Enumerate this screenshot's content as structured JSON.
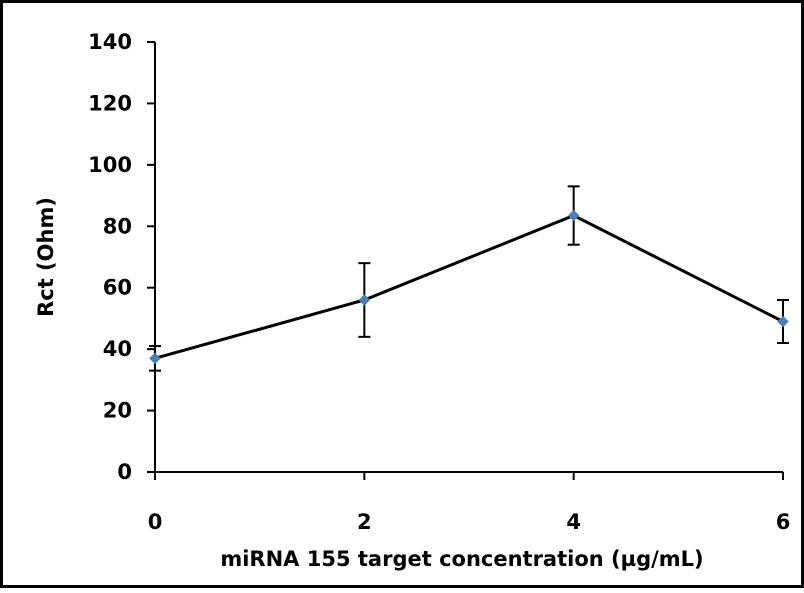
{
  "chart_data": {
    "type": "line",
    "title": "",
    "xlabel": "miRNA 155 target concentration (µg/mL)",
    "ylabel": "Rct (Ohm)",
    "x": [
      0,
      2,
      4,
      6
    ],
    "series": [
      {
        "values": [
          37,
          56,
          83.5,
          49
        ],
        "error": [
          4,
          12,
          9.5,
          7
        ],
        "line_color": "#000000",
        "marker_color": "#4a7ebb"
      }
    ],
    "xlim": [
      0,
      6
    ],
    "ylim": [
      0,
      140
    ],
    "xticks": [
      "0",
      "2",
      "4",
      "6"
    ],
    "yticks": [
      "0",
      "20",
      "40",
      "60",
      "80",
      "100",
      "120",
      "140"
    ],
    "grid": false,
    "legend": "none"
  }
}
